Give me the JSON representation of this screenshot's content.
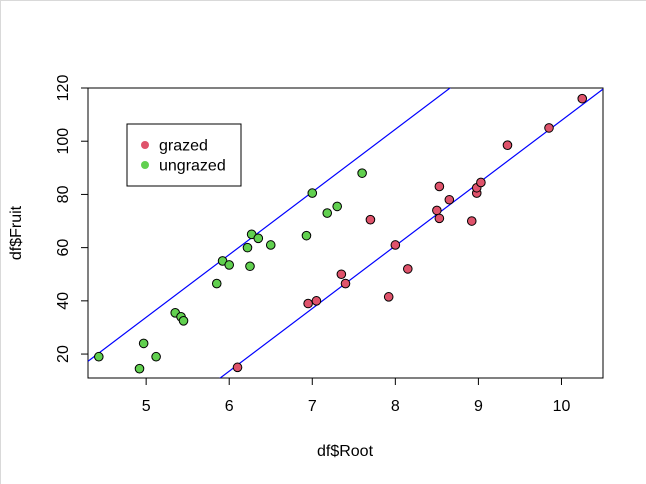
{
  "chart_data": {
    "type": "scatter",
    "xlabel": "df$Root",
    "ylabel": "df$Fruit",
    "xlim": [
      4.3,
      10.5
    ],
    "ylim": [
      11,
      120
    ],
    "x_ticks": [
      5,
      6,
      7,
      8,
      9,
      10
    ],
    "y_ticks": [
      20,
      40,
      60,
      80,
      100,
      120
    ],
    "grid": false,
    "legend_position": "top-left",
    "series": [
      {
        "name": "grazed",
        "color": "#DF536B",
        "points": [
          [
            6.1,
            15
          ],
          [
            6.95,
            39
          ],
          [
            7.05,
            40
          ],
          [
            7.35,
            50
          ],
          [
            7.4,
            46.5
          ],
          [
            7.7,
            70.5
          ],
          [
            7.92,
            41.5
          ],
          [
            8.0,
            61
          ],
          [
            8.15,
            52
          ],
          [
            8.5,
            74
          ],
          [
            8.53,
            71
          ],
          [
            8.53,
            83
          ],
          [
            8.65,
            78
          ],
          [
            8.92,
            70
          ],
          [
            8.98,
            80.5
          ],
          [
            8.98,
            82.5
          ],
          [
            9.03,
            84.5
          ],
          [
            9.35,
            98.5
          ],
          [
            9.85,
            105
          ],
          [
            10.25,
            116
          ]
        ]
      },
      {
        "name": "ungrazed",
        "color": "#61D04F",
        "points": [
          [
            4.43,
            19
          ],
          [
            4.92,
            14.5
          ],
          [
            4.97,
            24
          ],
          [
            5.12,
            19
          ],
          [
            5.35,
            35.5
          ],
          [
            5.42,
            34
          ],
          [
            5.45,
            32.5
          ],
          [
            5.85,
            46.5
          ],
          [
            5.92,
            55
          ],
          [
            6.0,
            53.5
          ],
          [
            6.22,
            60
          ],
          [
            6.25,
            53
          ],
          [
            6.27,
            65
          ],
          [
            6.35,
            63.5
          ],
          [
            6.5,
            61
          ],
          [
            6.93,
            64.5
          ],
          [
            7.0,
            80.5
          ],
          [
            7.18,
            73
          ],
          [
            7.3,
            75.5
          ],
          [
            7.6,
            88
          ]
        ]
      }
    ],
    "fit_lines": [
      {
        "color": "#0000FF",
        "intercept": -127.8,
        "slope": 23.56
      },
      {
        "color": "#0000FF",
        "intercept": -84.0,
        "slope": 23.56
      }
    ]
  }
}
